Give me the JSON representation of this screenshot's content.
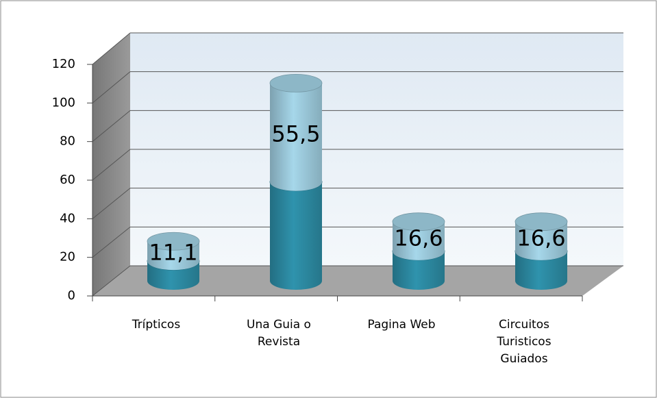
{
  "chart_data": {
    "type": "cylinder-stacked-3d",
    "categories": [
      "Trípticos",
      "Una Guia o Revista",
      "Pagina Web",
      "Circuitos Turisticos Guiados"
    ],
    "series": [
      {
        "color": "#2f93ad",
        "values": [
          11.1,
          55.5,
          16.6,
          16.6
        ]
      },
      {
        "color": "#a6d7ea",
        "values": [
          11.1,
          55.5,
          16.6,
          16.6
        ],
        "value_labels": [
          "11,1",
          "55,5",
          "16,6",
          "16,6"
        ]
      }
    ],
    "ylim": [
      0,
      120
    ],
    "yticks": [
      0,
      20,
      40,
      60,
      80,
      100,
      120
    ],
    "grid": true
  }
}
